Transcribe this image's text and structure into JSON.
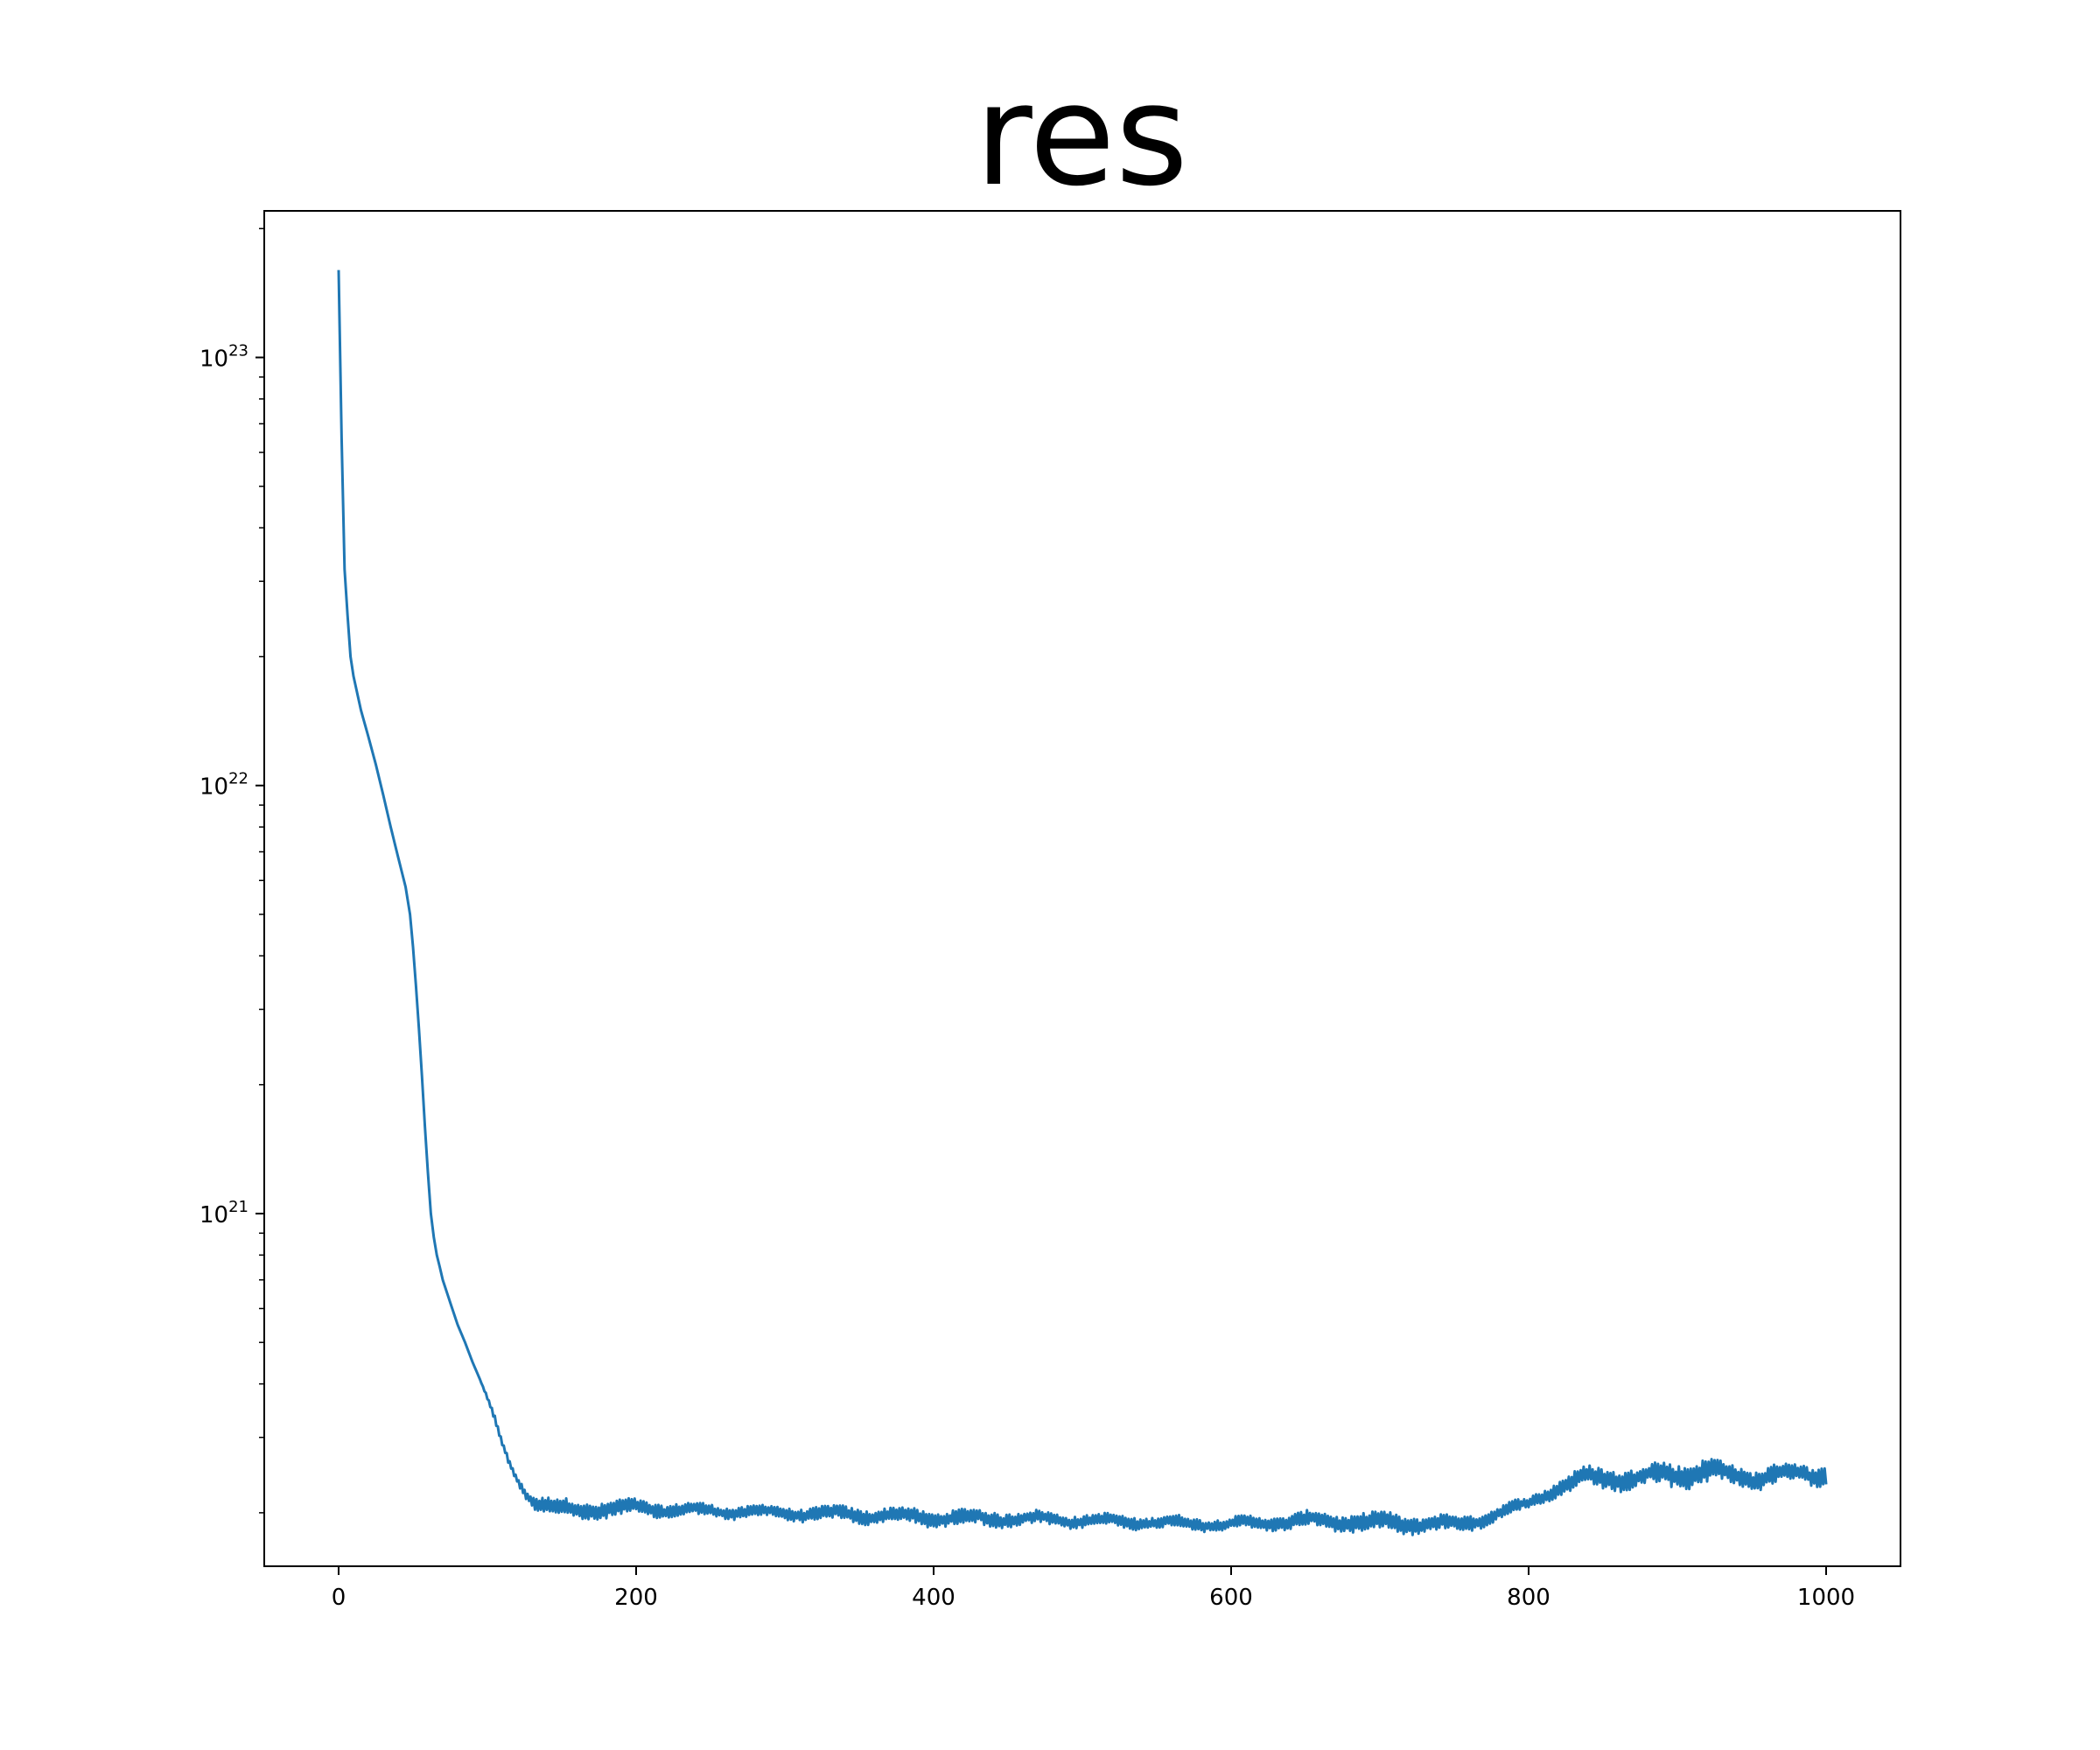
{
  "chart_data": {
    "type": "line",
    "title": "res",
    "xlabel": "",
    "ylabel": "",
    "y_scale": "log",
    "xlim": [
      -50,
      1050
    ],
    "ylim": [
      1.5e+20,
      2.2e+23
    ],
    "x_ticks": [
      0,
      200,
      400,
      600,
      800,
      1000
    ],
    "x_tick_labels": [
      "0",
      "200",
      "400",
      "600",
      "800",
      "1000"
    ],
    "y_ticks": [
      {
        "value": 1e+21,
        "base": "10",
        "exp": "21"
      },
      {
        "value": 1e+22,
        "base": "10",
        "exp": "22"
      },
      {
        "value": 1e+23,
        "base": "10",
        "exp": "23"
      }
    ],
    "grid": false,
    "legend": "none",
    "line_color": "#1f77b4",
    "series": [
      {
        "x": [
          0,
          2,
          4,
          6,
          8,
          10,
          15,
          20,
          25,
          30,
          35,
          40,
          45,
          48,
          50,
          52,
          54,
          56,
          58,
          60,
          62,
          64,
          66,
          68,
          70,
          75,
          80,
          85,
          90,
          95,
          100,
          105,
          110,
          115,
          120,
          125,
          130,
          135,
          140,
          145,
          150,
          200,
          250,
          300,
          350,
          400,
          450,
          500,
          550,
          600,
          650,
          700,
          750,
          760,
          770,
          780,
          790,
          800,
          810,
          820,
          830,
          840,
          850,
          860,
          870,
          880,
          890,
          900,
          910,
          920,
          930,
          940,
          950,
          960,
          970,
          980,
          990,
          1000
        ],
        "y": [
          1.6e+23,
          6.5e+22,
          3.2e+22,
          2.5e+22,
          2e+22,
          1.8e+22,
          1.5e+22,
          1.3e+22,
          1.12e+22,
          9.5e+21,
          8e+21,
          6.8e+21,
          5.8e+21,
          5e+21,
          4.2e+21,
          3.4e+21,
          2.7e+21,
          2.1e+21,
          1.6e+21,
          1.25e+21,
          1e+21,
          8.8e+20,
          8e+20,
          7.5e+20,
          7e+20,
          6.2e+20,
          5.5e+20,
          5e+20,
          4.5e+20,
          4.1e+20,
          3.7e+20,
          3.3e+20,
          2.9e+20,
          2.6e+20,
          2.4e+20,
          2.25e+20,
          2.15e+20,
          2.1e+20,
          2.08e+20,
          2.05e+20,
          2.03e+20,
          2.05e+20,
          2.02e+20,
          2e+20,
          1.98e+20,
          1.95e+20,
          1.94e+20,
          1.92e+20,
          1.9e+20,
          1.88e+20,
          1.92e+20,
          1.9e+20,
          1.88e+20,
          1.9e+20,
          1.95e+20,
          2e+20,
          2.05e+20,
          2.1e+20,
          2.2e+20,
          2.3e+20,
          2.35e+20,
          2.4e+20,
          2.42e+20,
          2.42e+20,
          2.4e+20,
          2.42e+20,
          2.45e+20,
          2.47e+20,
          2.5e+20,
          2.5e+20,
          2.47e+20,
          2.44e+20,
          2.42e+20,
          2.44e+20,
          2.45e+20,
          2.46e+20,
          2.45e+20,
          2.48e+20
        ],
        "noise_amplitude_fraction": [
          0,
          0,
          0,
          0,
          0,
          0,
          0,
          0,
          0,
          0,
          0,
          0,
          0,
          0,
          0,
          0,
          0,
          0,
          0,
          0,
          0,
          0,
          0,
          0,
          0,
          0,
          0,
          0,
          0,
          0,
          0.01,
          0.02,
          0.02,
          0.02,
          0.02,
          0.03,
          0.04,
          0.05,
          0.05,
          0.06,
          0.06,
          0.05,
          0.04,
          0.04,
          0.05,
          0.05,
          0.05,
          0.04,
          0.04,
          0.04,
          0.05,
          0.06,
          0.05,
          0.05,
          0.05,
          0.04,
          0.04,
          0.04,
          0.05,
          0.06,
          0.06,
          0.07,
          0.07,
          0.07,
          0.07,
          0.07,
          0.08,
          0.08,
          0.08,
          0.08,
          0.07,
          0.06,
          0.06,
          0.07,
          0.07,
          0.06,
          0.06,
          0.06
        ]
      }
    ]
  }
}
